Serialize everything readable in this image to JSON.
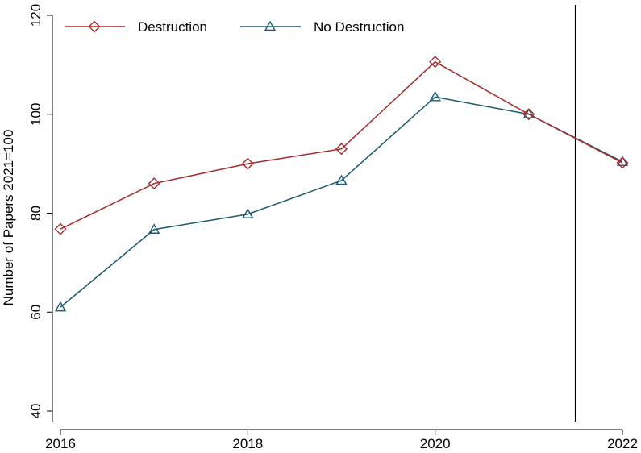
{
  "chart_data": {
    "type": "line",
    "title": "",
    "xlabel": "",
    "ylabel": "Number of Papers 2021=100",
    "x": [
      2016,
      2017,
      2018,
      2019,
      2020,
      2021,
      2022
    ],
    "xticks": [
      2016,
      2018,
      2020,
      2022
    ],
    "yticks": [
      40,
      60,
      80,
      100,
      120
    ],
    "xlim": [
      2016,
      2022
    ],
    "ylim": [
      40,
      120
    ],
    "grid": false,
    "legend_position": "top-left",
    "vline": 2021.5,
    "series": [
      {
        "name": "Destruction",
        "values": [
          76.8,
          86.0,
          90.0,
          93.0,
          110.6,
          100.0,
          90.2
        ],
        "color": "#a52a2a",
        "marker": "diamond"
      },
      {
        "name": "No Destruction",
        "values": [
          61.0,
          76.7,
          79.8,
          86.6,
          103.5,
          100.0,
          90.4
        ],
        "color": "#1a5a6e",
        "marker": "triangle"
      }
    ]
  }
}
